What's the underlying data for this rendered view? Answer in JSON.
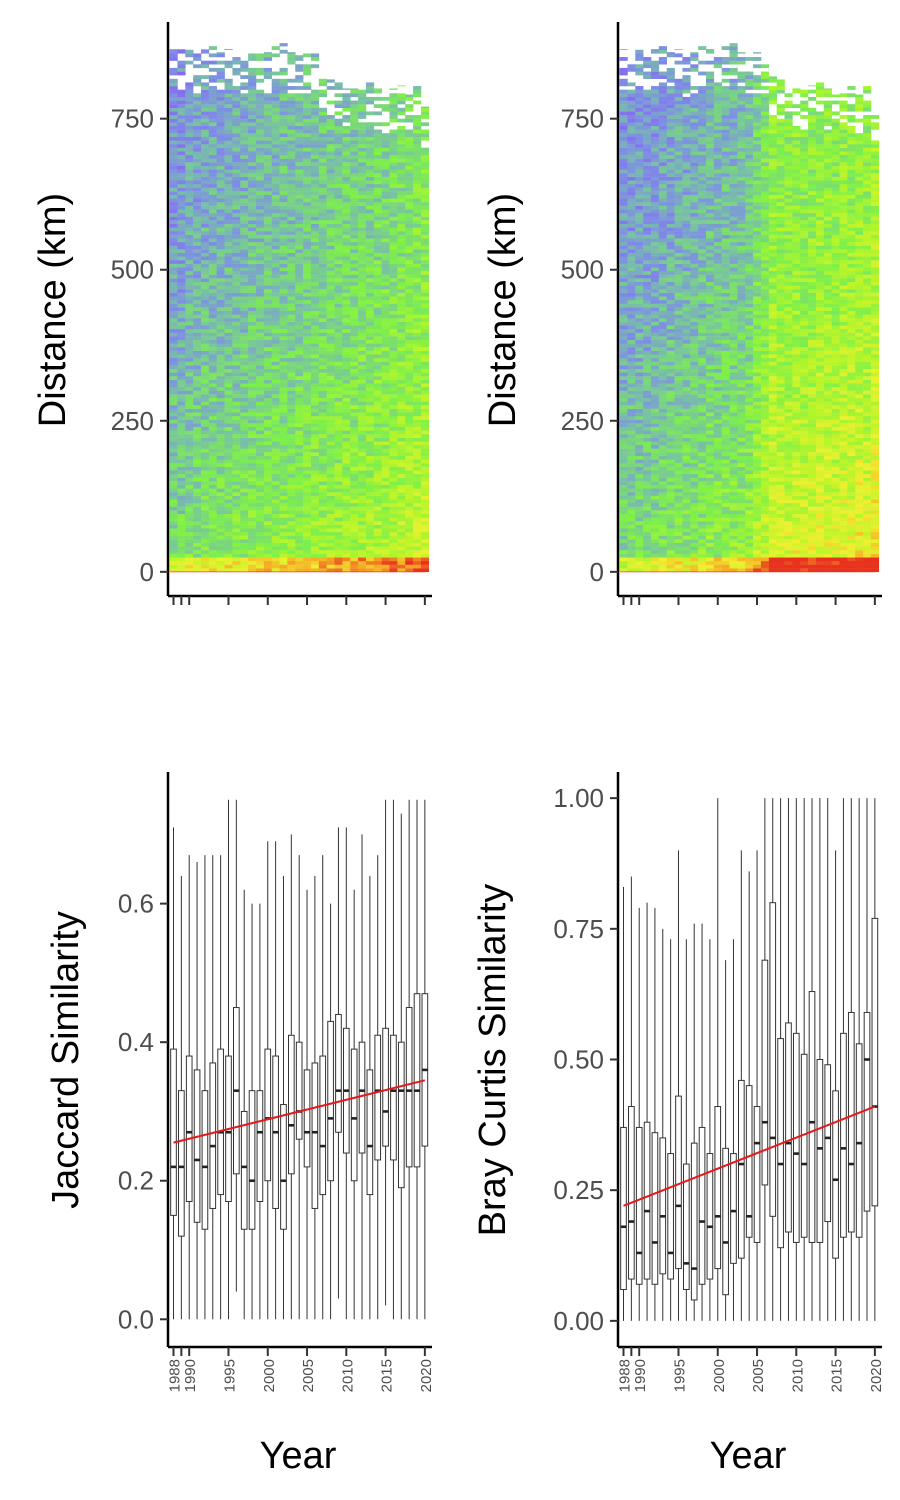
{
  "chart_data": [
    {
      "panel": "top-left",
      "type": "heatmap",
      "ylabel": "Distance (km)",
      "xlabel": "",
      "y_ticks": [
        0,
        250,
        500,
        750
      ],
      "ylim": [
        -40,
        910
      ],
      "xlim": [
        1987.3,
        2020.4
      ],
      "x": [
        1988,
        1989,
        1990,
        1991,
        1992,
        1993,
        1994,
        1995,
        1996,
        1997,
        1998,
        1999,
        2000,
        2001,
        2002,
        2003,
        2004,
        2005,
        2006,
        2007,
        2008,
        2009,
        2010,
        2011,
        2012,
        2013,
        2014,
        2015,
        2016,
        2017,
        2018,
        2019,
        2020
      ],
      "max_distance": [
        865,
        865,
        870,
        860,
        865,
        870,
        860,
        865,
        855,
        860,
        870,
        865,
        860,
        870,
        875,
        860,
        855,
        860,
        860,
        820,
        815,
        810,
        800,
        800,
        805,
        810,
        800,
        790,
        800,
        805,
        790,
        810,
        770
      ],
      "color_scale": [
        "#8a5cf5",
        "#7e8ee6",
        "#78c4a0",
        "#7df04a",
        "#b8f529",
        "#f0f030",
        "#f5a623",
        "#e8321e"
      ],
      "color_bias": [
        0.15,
        0.15,
        0.18,
        0.18,
        0.2,
        0.2,
        0.2,
        0.22,
        0.22,
        0.22,
        0.24,
        0.24,
        0.25,
        0.25,
        0.26,
        0.26,
        0.27,
        0.28,
        0.28,
        0.29,
        0.3,
        0.3,
        0.31,
        0.31,
        0.32,
        0.32,
        0.33,
        0.34,
        0.35,
        0.36,
        0.37,
        0.38,
        0.4
      ],
      "grid": false
    },
    {
      "panel": "top-right",
      "type": "heatmap",
      "ylabel": "Distance (km)",
      "xlabel": "",
      "y_ticks": [
        0,
        250,
        500,
        750
      ],
      "ylim": [
        -40,
        910
      ],
      "xlim": [
        1987.3,
        2020.4
      ],
      "x": [
        1988,
        1989,
        1990,
        1991,
        1992,
        1993,
        1994,
        1995,
        1996,
        1997,
        1998,
        1999,
        2000,
        2001,
        2002,
        2003,
        2004,
        2005,
        2006,
        2007,
        2008,
        2009,
        2010,
        2011,
        2012,
        2013,
        2014,
        2015,
        2016,
        2017,
        2018,
        2019,
        2020
      ],
      "max_distance": [
        865,
        865,
        870,
        860,
        865,
        870,
        860,
        865,
        855,
        860,
        870,
        865,
        860,
        870,
        875,
        860,
        855,
        860,
        860,
        820,
        815,
        810,
        800,
        800,
        805,
        810,
        800,
        790,
        800,
        805,
        790,
        810,
        770
      ],
      "color_scale": [
        "#8a5cf5",
        "#7e8ee6",
        "#78c4a0",
        "#7df04a",
        "#b8f529",
        "#f0f030",
        "#f5a623",
        "#e8321e"
      ],
      "color_bias": [
        0.14,
        0.15,
        0.16,
        0.16,
        0.17,
        0.18,
        0.19,
        0.2,
        0.2,
        0.21,
        0.22,
        0.24,
        0.24,
        0.25,
        0.25,
        0.26,
        0.28,
        0.34,
        0.38,
        0.46,
        0.44,
        0.42,
        0.45,
        0.43,
        0.44,
        0.46,
        0.45,
        0.44,
        0.47,
        0.46,
        0.48,
        0.46,
        0.5
      ],
      "grid": false
    },
    {
      "panel": "bottom-left",
      "type": "box",
      "xlabel": "Year",
      "ylabel": "Jaccard Similarity",
      "y_ticks": [
        "0.0",
        "0.2",
        "0.4",
        "0.6"
      ],
      "ylim": [
        -0.04,
        0.79
      ],
      "xlim": [
        1987.3,
        2020.4
      ],
      "x_ticks": [
        "1988",
        "1990",
        "1995",
        "2000",
        "2005",
        "2010",
        "2015",
        "2020"
      ],
      "x": [
        1988,
        1989,
        1990,
        1991,
        1992,
        1993,
        1994,
        1995,
        1996,
        1997,
        1998,
        1999,
        2000,
        2001,
        2002,
        2003,
        2004,
        2005,
        2006,
        2007,
        2008,
        2009,
        2010,
        2011,
        2012,
        2013,
        2014,
        2015,
        2016,
        2017,
        2018,
        2019,
        2020
      ],
      "q1": [
        0.15,
        0.12,
        0.17,
        0.14,
        0.13,
        0.16,
        0.18,
        0.17,
        0.21,
        0.13,
        0.13,
        0.17,
        0.2,
        0.16,
        0.13,
        0.21,
        0.26,
        0.22,
        0.16,
        0.18,
        0.2,
        0.27,
        0.24,
        0.2,
        0.24,
        0.18,
        0.23,
        0.25,
        0.23,
        0.19,
        0.22,
        0.22,
        0.25
      ],
      "median": [
        0.22,
        0.22,
        0.27,
        0.23,
        0.22,
        0.25,
        0.27,
        0.27,
        0.33,
        0.22,
        0.2,
        0.27,
        0.29,
        0.27,
        0.2,
        0.28,
        0.3,
        0.27,
        0.27,
        0.25,
        0.29,
        0.33,
        0.33,
        0.29,
        0.33,
        0.25,
        0.33,
        0.3,
        0.33,
        0.33,
        0.33,
        0.33,
        0.36
      ],
      "q3": [
        0.39,
        0.33,
        0.38,
        0.36,
        0.33,
        0.37,
        0.39,
        0.38,
        0.45,
        0.3,
        0.33,
        0.33,
        0.39,
        0.38,
        0.31,
        0.41,
        0.4,
        0.36,
        0.37,
        0.38,
        0.43,
        0.44,
        0.42,
        0.39,
        0.4,
        0.36,
        0.41,
        0.42,
        0.41,
        0.4,
        0.45,
        0.47,
        0.47
      ],
      "whisker_low": [
        0.0,
        0.0,
        0.0,
        0.0,
        0.0,
        0.0,
        0.0,
        0.0,
        0.04,
        0.0,
        0.0,
        0.0,
        0.0,
        0.0,
        0.0,
        0.0,
        0.0,
        0.0,
        0.0,
        0.0,
        0.0,
        0.03,
        0.0,
        0.0,
        0.0,
        0.0,
        0.0,
        0.02,
        0.0,
        0.0,
        0.0,
        0.0,
        0.0
      ],
      "whisker_high": [
        0.71,
        0.64,
        0.67,
        0.66,
        0.67,
        0.67,
        0.67,
        0.75,
        0.75,
        0.62,
        0.6,
        0.6,
        0.69,
        0.69,
        0.64,
        0.7,
        0.67,
        0.62,
        0.64,
        0.67,
        0.6,
        0.71,
        0.71,
        0.62,
        0.7,
        0.64,
        0.67,
        0.75,
        0.75,
        0.73,
        0.75,
        0.75,
        0.75
      ],
      "trend": {
        "color": "#e41a1c",
        "start": 0.255,
        "end": 0.345
      },
      "grid": false
    },
    {
      "panel": "bottom-right",
      "type": "box",
      "xlabel": "Year",
      "ylabel": "Bray Curtis Similarity",
      "y_ticks": [
        "0.00",
        "0.25",
        "0.50",
        "0.75",
        "1.00"
      ],
      "ylim": [
        -0.05,
        1.05
      ],
      "xlim": [
        1987.3,
        2020.4
      ],
      "x_ticks": [
        "1988",
        "1990",
        "1995",
        "2000",
        "2005",
        "2010",
        "2015",
        "2020"
      ],
      "x": [
        1988,
        1989,
        1990,
        1991,
        1992,
        1993,
        1994,
        1995,
        1996,
        1997,
        1998,
        1999,
        2000,
        2001,
        2002,
        2003,
        2004,
        2005,
        2006,
        2007,
        2008,
        2009,
        2010,
        2011,
        2012,
        2013,
        2014,
        2015,
        2016,
        2017,
        2018,
        2019,
        2020
      ],
      "q1": [
        0.06,
        0.08,
        0.07,
        0.08,
        0.07,
        0.09,
        0.08,
        0.1,
        0.06,
        0.04,
        0.07,
        0.08,
        0.1,
        0.05,
        0.11,
        0.12,
        0.16,
        0.15,
        0.26,
        0.2,
        0.14,
        0.17,
        0.15,
        0.16,
        0.15,
        0.15,
        0.19,
        0.12,
        0.16,
        0.17,
        0.16,
        0.21,
        0.22
      ],
      "median": [
        0.18,
        0.19,
        0.13,
        0.21,
        0.15,
        0.2,
        0.13,
        0.22,
        0.11,
        0.1,
        0.19,
        0.18,
        0.2,
        0.15,
        0.21,
        0.3,
        0.2,
        0.34,
        0.38,
        0.35,
        0.3,
        0.34,
        0.32,
        0.3,
        0.38,
        0.33,
        0.35,
        0.27,
        0.33,
        0.3,
        0.34,
        0.5,
        0.41
      ],
      "q3": [
        0.37,
        0.41,
        0.37,
        0.38,
        0.36,
        0.35,
        0.32,
        0.43,
        0.3,
        0.34,
        0.37,
        0.32,
        0.41,
        0.33,
        0.32,
        0.46,
        0.45,
        0.41,
        0.69,
        0.8,
        0.54,
        0.57,
        0.55,
        0.51,
        0.63,
        0.5,
        0.49,
        0.44,
        0.55,
        0.59,
        0.53,
        0.59,
        0.77
      ],
      "whisker_low": [
        0.0,
        0.0,
        0.0,
        0.0,
        0.0,
        0.0,
        0.0,
        0.0,
        0.0,
        0.0,
        0.0,
        0.0,
        0.0,
        0.0,
        0.0,
        0.0,
        0.0,
        0.0,
        0.0,
        0.0,
        0.0,
        0.0,
        0.0,
        0.0,
        0.0,
        0.0,
        0.0,
        0.0,
        0.0,
        0.0,
        0.0,
        0.0,
        0.0
      ],
      "whisker_high": [
        0.83,
        0.85,
        0.79,
        0.8,
        0.79,
        0.75,
        0.73,
        0.9,
        0.73,
        0.76,
        0.76,
        0.73,
        1.0,
        0.69,
        0.73,
        0.9,
        0.86,
        0.9,
        1.0,
        1.0,
        1.0,
        1.0,
        1.0,
        1.0,
        1.0,
        1.0,
        1.0,
        0.9,
        1.0,
        1.0,
        1.0,
        1.0,
        1.0
      ],
      "trend": {
        "color": "#e41a1c",
        "start": 0.22,
        "end": 0.41
      },
      "grid": false
    }
  ]
}
